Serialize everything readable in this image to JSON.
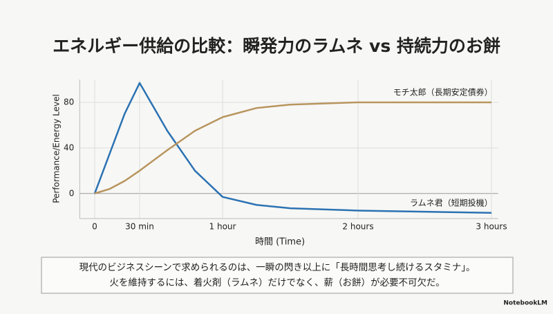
{
  "chart_data": {
    "type": "line",
    "title": "エネルギー供給の比較：瞬発力のラムネ vs 持続力のお餅",
    "x_label": "時間 (Time)",
    "y_label": "Performance/Energy Level",
    "x": [
      0,
      10,
      20,
      30,
      40,
      50,
      60,
      75,
      90,
      120,
      150,
      180
    ],
    "series": [
      {
        "name": "ラムネ君（短期投機）",
        "color": "#2b72b3",
        "values": [
          0,
          35,
          70,
          97,
          55,
          20,
          -3,
          -10,
          -13,
          -15,
          -16,
          -17
        ]
      },
      {
        "name": "モチ太郎（長期安定債券）",
        "color": "#b8955e",
        "values": [
          0,
          4,
          11,
          20,
          38,
          55,
          67,
          75,
          78,
          80,
          80,
          80
        ]
      }
    ],
    "xlim": [
      -10,
      183
    ],
    "xticks": [
      0,
      {
        "value": 30,
        "label": "30 min"
      },
      {
        "value": 60,
        "label": "1 hour"
      },
      {
        "value": 120,
        "label": "2 hours"
      },
      {
        "value": 180,
        "label": "3 hours"
      }
    ],
    "ylim": [
      -22,
      100
    ],
    "yticks": [
      0,
      40,
      80
    ],
    "grid": true
  },
  "caption": [
    "現代のビジネスシーンで求められるのは、一瞬の閃き以上に「長時間思考し続けるスタミナ」。",
    "火を維持するには、着火剤（ラムネ）だけでなく、薪（お餅）が必要不可欠だ。"
  ],
  "brand": "NotebookLM"
}
